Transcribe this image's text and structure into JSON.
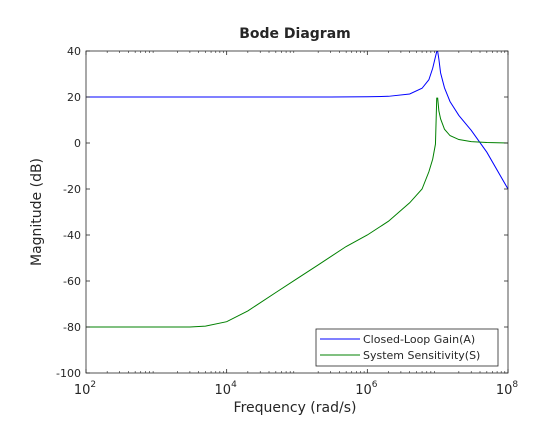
{
  "chart_data": {
    "type": "line",
    "title": "Bode Diagram",
    "xlabel": "Frequency  (rad/s)",
    "ylabel": "Magnitude (dB)",
    "x_scale": "log",
    "xlim": [
      100,
      100000000
    ],
    "ylim": [
      -100,
      40
    ],
    "x_ticks": [
      {
        "value": 100,
        "base": "10",
        "exp": "2"
      },
      {
        "value": 10000,
        "base": "10",
        "exp": "4"
      },
      {
        "value": 1000000,
        "base": "10",
        "exp": "6"
      },
      {
        "value": 100000000,
        "base": "10",
        "exp": "8"
      }
    ],
    "y_ticks": [
      {
        "value": 40,
        "label": "40"
      },
      {
        "value": 20,
        "label": "20"
      },
      {
        "value": 0,
        "label": "0"
      },
      {
        "value": -20,
        "label": "-20"
      },
      {
        "value": -40,
        "label": "-40"
      },
      {
        "value": -60,
        "label": "-60"
      },
      {
        "value": -80,
        "label": "-80"
      },
      {
        "value": -100,
        "label": "-100"
      }
    ],
    "grid": false,
    "legend_position": "bottom-right",
    "series": [
      {
        "name": "Closed-Loop Gain(A)",
        "color": "#0000ff",
        "x": [
          100,
          10000,
          300000,
          1000000,
          2000000,
          4000000,
          6000000,
          7500000,
          8500000,
          9300000,
          9700000,
          10000000,
          10400000,
          11000000,
          12500000,
          15000000,
          20000000,
          30000000,
          50000000,
          100000000
        ],
        "y": [
          20,
          20,
          20,
          20.1,
          20.3,
          21.3,
          23.8,
          27.5,
          32.5,
          37.5,
          39.8,
          39.8,
          36.5,
          30.5,
          24,
          18,
          12,
          5.5,
          -4,
          -20
        ]
      },
      {
        "name": "System Sensitivity(S)",
        "color": "#008000",
        "x": [
          100,
          1000,
          3000,
          5000,
          10000,
          20000,
          50000,
          100000,
          200000,
          500000,
          1000000,
          2000000,
          4000000,
          6000000,
          7500000,
          8500000,
          9300000,
          9700000,
          10000000,
          10400000,
          11000000,
          12500000,
          15000000,
          20000000,
          30000000,
          50000000,
          100000000
        ],
        "y": [
          -80,
          -80,
          -80,
          -79.6,
          -77.7,
          -73,
          -65,
          -59,
          -53,
          -45,
          -40,
          -34,
          -26,
          -20,
          -12.5,
          -7,
          -0.5,
          19.5,
          19.5,
          14,
          10.5,
          6,
          3.2,
          1.5,
          0.6,
          0.2,
          0
        ]
      }
    ]
  }
}
